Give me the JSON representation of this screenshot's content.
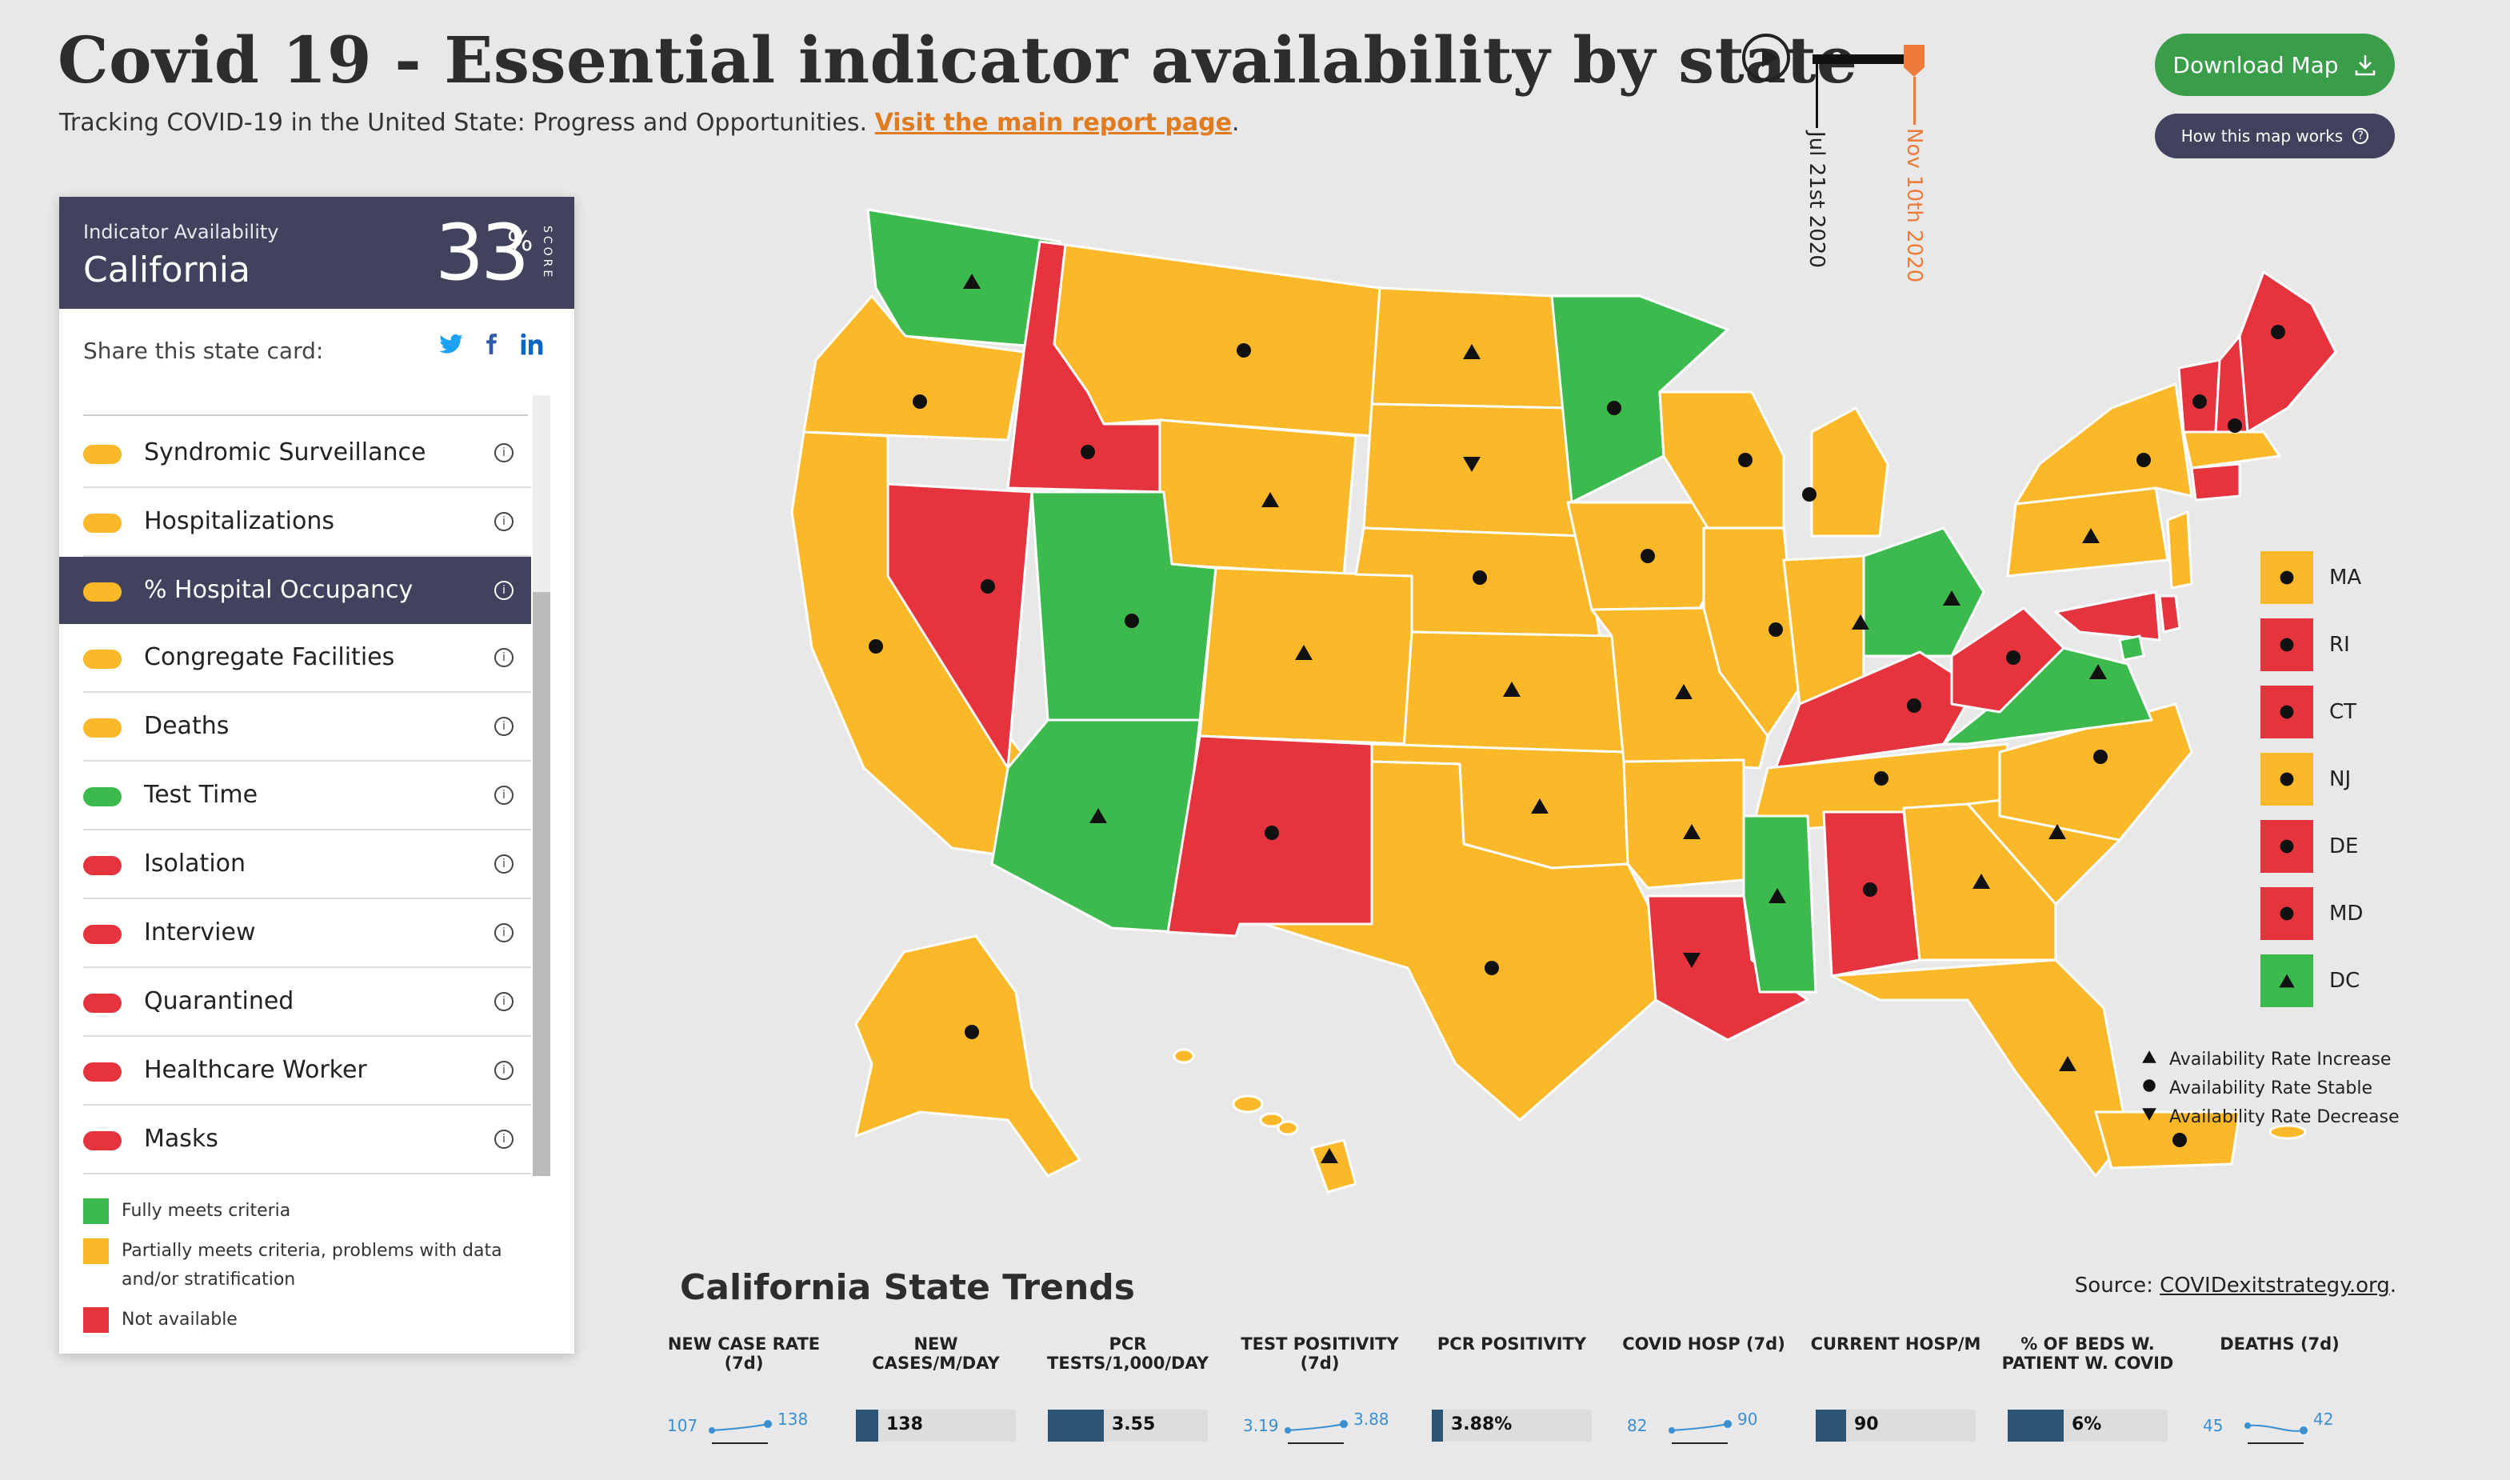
{
  "header": {
    "title": "Covid 19 - Essential indicator availability by state",
    "subtitle": "Tracking COVID-19 in the United State: Progress and Opportunities.",
    "report_link": "Visit the main report page",
    "period": "."
  },
  "timeline": {
    "start_date": "Jul 21st 2020",
    "end_date": "Nov 10th 2020",
    "progress": 1.0
  },
  "buttons": {
    "download": "Download Map",
    "how": "How this map works"
  },
  "panel": {
    "header_label": "Indicator Availability",
    "state": "California",
    "score": "33",
    "score_unit": "%",
    "score_label": "SCORE",
    "share_label": "Share this state card:",
    "indicators": [
      {
        "label": "Syndromic Surveillance",
        "status": "partial"
      },
      {
        "label": "Hospitalizations",
        "status": "partial"
      },
      {
        "label": "% Hospital Occupancy",
        "status": "partial",
        "selected": true
      },
      {
        "label": "Congregate Facilities",
        "status": "partial"
      },
      {
        "label": "Deaths",
        "status": "partial"
      },
      {
        "label": "Test Time",
        "status": "full"
      },
      {
        "label": "Isolation",
        "status": "none"
      },
      {
        "label": "Interview",
        "status": "none"
      },
      {
        "label": "Quarantined",
        "status": "none"
      },
      {
        "label": "Healthcare Worker",
        "status": "none"
      },
      {
        "label": "Masks",
        "status": "none"
      }
    ],
    "legend": [
      {
        "label": "Fully meets criteria",
        "color": "#3dba4e"
      },
      {
        "label": "Partially meets criteria, problems with data and/or stratification",
        "color": "#fbb829"
      },
      {
        "label": "Not available",
        "color": "#e5343d"
      }
    ]
  },
  "colors": {
    "full": "#3dba4e",
    "partial": "#fbb829",
    "none": "#e5343d",
    "selected_bg": "#41435e"
  },
  "small_states": [
    {
      "label": "MA",
      "status": "partial",
      "marker": "stable"
    },
    {
      "label": "RI",
      "status": "none",
      "marker": "stable"
    },
    {
      "label": "CT",
      "status": "none",
      "marker": "stable"
    },
    {
      "label": "NJ",
      "status": "partial",
      "marker": "stable"
    },
    {
      "label": "DE",
      "status": "none",
      "marker": "stable"
    },
    {
      "label": "MD",
      "status": "none",
      "marker": "stable"
    },
    {
      "label": "DC",
      "status": "full",
      "marker": "increase"
    }
  ],
  "marker_legend": [
    {
      "marker": "increase",
      "label": "Availability Rate Increase"
    },
    {
      "marker": "stable",
      "label": "Availability Rate Stable"
    },
    {
      "marker": "decrease",
      "label": "Availability Rate Decrease"
    }
  ],
  "trends": {
    "title": "California State Trends",
    "source_label": "Source: ",
    "source_link": "COVIDexitstrategy.org",
    "source_end": ".",
    "metrics": [
      {
        "label": "NEW CASE RATE (7d)",
        "type": "spark",
        "start": "107",
        "end": "138"
      },
      {
        "label": "NEW CASES/M/DAY",
        "type": "bar",
        "value": "138",
        "fill": 0.14
      },
      {
        "label": "PCR TESTS/1,000/DAY",
        "type": "bar",
        "value": "3.55",
        "fill": 0.35
      },
      {
        "label": "TEST POSITIVITY (7d)",
        "type": "spark",
        "start": "3.19",
        "end": "3.88"
      },
      {
        "label": "PCR POSITIVITY",
        "type": "bar",
        "value": "3.88%",
        "fill": 0.07
      },
      {
        "label": "COVID HOSP (7d)",
        "type": "spark",
        "start": "82",
        "end": "90"
      },
      {
        "label": "CURRENT HOSP/M",
        "type": "bar",
        "value": "90",
        "fill": 0.19
      },
      {
        "label": "% OF BEDS W. PATIENT W. COVID",
        "type": "bar",
        "value": "6%",
        "fill": 0.35
      },
      {
        "label": "DEATHS (7d)",
        "type": "spark",
        "start": "45",
        "end": "42"
      }
    ]
  }
}
